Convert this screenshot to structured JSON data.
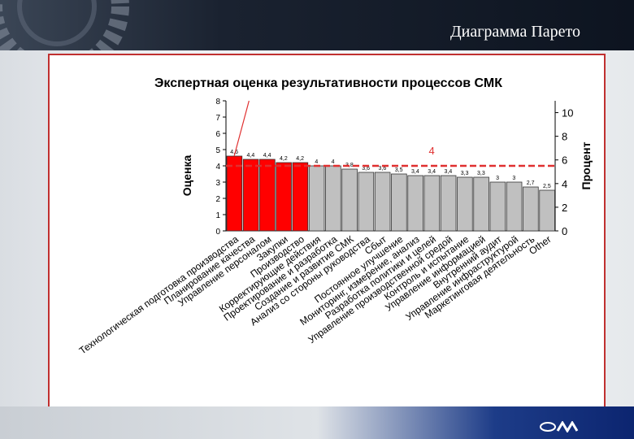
{
  "slide": {
    "title": "Диаграмма Парето"
  },
  "colors": {
    "vital_bar": "#ff0000",
    "other_bar": "#c0c0c0",
    "cumulative_line": "#e03030",
    "threshold_line": "#e03030",
    "frame_border": "#c03030"
  },
  "chart_data": {
    "type": "bar",
    "title": "Экспертная оценка результативности процессов СМК",
    "ylabel": "Оценка",
    "y2label": "Процент",
    "ylim": [
      0,
      8
    ],
    "yticks": [
      "0",
      "1",
      "2",
      "3",
      "4",
      "5",
      "6",
      "7",
      "8"
    ],
    "y2lim": [
      0,
      11
    ],
    "y2ticks": [
      "0",
      "2",
      "4",
      "6",
      "8",
      "10"
    ],
    "grid": false,
    "categories": [
      "Технологическая подготовка производства",
      "Планирование качества",
      "Управление персоналом",
      "Закупки",
      "Производство",
      "Корректирующие действия",
      "Проектирование и разработка",
      "Создание и развитие СМК",
      "Анализ со стороны руководства",
      "Сбыт",
      "Постоянное улучшение",
      "Мониторинг, измерение, анализ",
      "Разработка политики и целей",
      "Управление производственной средой",
      "Контроль и испытание",
      "Управление информацией",
      "Внутренний аудит",
      "Управление инфраструктурой",
      "Маркетинговая деятельность",
      "Other"
    ],
    "values": [
      4.6,
      4.4,
      4.4,
      4.2,
      4.2,
      4.0,
      4.0,
      3.8,
      3.6,
      3.6,
      3.5,
      3.4,
      3.4,
      3.4,
      3.3,
      3.3,
      3.0,
      3.0,
      2.7,
      2.5
    ],
    "data_labels": [
      "4,6",
      "4,4",
      "4,4",
      "4,2",
      "4,2",
      "4",
      "4",
      "3,8",
      "3,6",
      "3,6",
      "3,5",
      "3,4",
      "3,4",
      "3,4",
      "3,3",
      "3,3",
      "3",
      "3",
      "2,7",
      "2,5"
    ],
    "highlighted_count": 5,
    "threshold": {
      "value": 4.0,
      "label": "4",
      "style": "dashed"
    },
    "cumulative_line": {
      "points": [
        [
          0,
          4.6
        ],
        [
          0.9,
          8.0
        ]
      ]
    }
  }
}
